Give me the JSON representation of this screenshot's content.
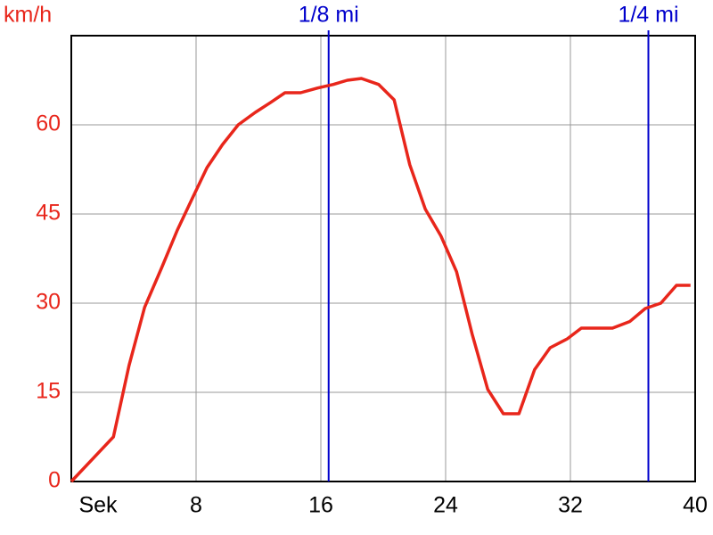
{
  "chart_data": {
    "type": "line",
    "y_label": "km/h",
    "x": [
      0,
      2.7,
      3.7,
      4.7,
      5.8,
      6.8,
      7.7,
      8.7,
      9.7,
      10.7,
      11.8,
      12.8,
      13.7,
      14.7,
      15.8,
      16.8,
      17.7,
      18.6,
      19.7,
      20.7,
      21.7,
      22.7,
      23.7,
      24.7,
      25.7,
      26.7,
      27.7,
      28.7,
      29.7,
      30.7,
      31.8,
      32.7,
      33.8,
      34.7,
      35.8,
      36.8,
      37.8,
      38.8,
      39.7
    ],
    "series": [
      {
        "color": "#e8261b",
        "values": [
          0,
          7.5,
          19.5,
          29.3,
          36,
          42.3,
          47.3,
          52.8,
          56.7,
          60,
          62.1,
          63.8,
          65.4,
          65.4,
          66.2,
          66.8,
          67.5,
          67.8,
          66.8,
          64.2,
          53.3,
          45.8,
          41.3,
          35.3,
          24.8,
          15.5,
          11.4,
          11.4,
          18.8,
          22.5,
          24,
          25.8,
          25.8,
          25.8,
          26.9,
          29.1,
          30,
          33,
          33
        ]
      }
    ],
    "xlim": [
      0,
      40
    ],
    "xticks": [
      {
        "value": 0,
        "label": "Sek"
      },
      8,
      16,
      24,
      32,
      40
    ],
    "ylim": [
      0,
      75
    ],
    "yticks": [
      0,
      15,
      30,
      45,
      60
    ],
    "grid": true,
    "markers": [
      {
        "label": "1/8 mi",
        "x": 16.5,
        "color": "#0000cc"
      },
      {
        "label": "1/4 mi",
        "x": 37,
        "color": "#0000cc"
      }
    ]
  }
}
